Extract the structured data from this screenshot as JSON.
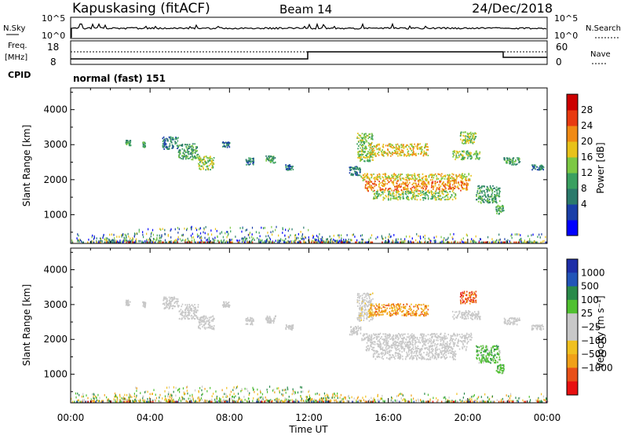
{
  "header": {
    "station": "Kapuskasing (fitACF)",
    "beam": "Beam 14",
    "date": "24/Dec/2018"
  },
  "strips": {
    "nsky_label": "N.Sky",
    "nsky_ticks": [
      "10^5",
      "10^0"
    ],
    "nsearch_label": "N.Search",
    "freq_label_1": "Freq.",
    "freq_label_2": "[MHz]",
    "freq_ticks": [
      "18",
      "8"
    ],
    "nave_label": "Nave",
    "nave_ticks": [
      "60",
      "0"
    ],
    "cpid_label": "CPID",
    "cpid_value": "normal (fast) 151"
  },
  "colors": {
    "power": [
      "#0000ff",
      "#1a3fa8",
      "#2b7a6b",
      "#3aa060",
      "#7cc843",
      "#e8c21a",
      "#f08a14",
      "#e83a10",
      "#cc0000"
    ],
    "velocity": [
      "#1e2fa8",
      "#2255b8",
      "#2a8a4a",
      "#50c030",
      "#c8c8c8",
      "#c8c8c8",
      "#f0c020",
      "#f0a018",
      "#e85018",
      "#e81010"
    ],
    "velocity_gray": "#c8c8c8"
  },
  "chart_data": [
    {
      "type": "heatmap",
      "panel": "power",
      "ylabel": "Slant Range [km]",
      "xlabel": "Time UT",
      "x_ticks": [
        "00:00",
        "04:00",
        "08:00",
        "12:00",
        "16:00",
        "20:00",
        "00:00"
      ],
      "y_ticks": [
        1000,
        2000,
        3000,
        4000
      ],
      "ylim": [
        180,
        4620
      ],
      "xlim_hours": [
        0,
        24
      ],
      "colorbar_label": "Power [dB]",
      "colorbar_ticks": [
        "28",
        "24",
        "20",
        "16",
        "12",
        "8",
        "4"
      ]
    },
    {
      "type": "heatmap",
      "panel": "velocity",
      "ylabel": "Slant Range [km]",
      "xlabel": "Time UT",
      "x_ticks": [
        "00:00",
        "04:00",
        "08:00",
        "12:00",
        "16:00",
        "20:00",
        "00:00"
      ],
      "y_ticks": [
        1000,
        2000,
        3000,
        4000
      ],
      "ylim": [
        180,
        4620
      ],
      "xlim_hours": [
        0,
        24
      ],
      "colorbar_label": "Velocity [m s⁻¹]",
      "colorbar_ticks": [
        "1000",
        "500",
        "100",
        "25",
        "−25",
        "−100",
        "−500",
        "−1000"
      ]
    }
  ],
  "echo_regions": [
    {
      "t0": 2.75,
      "t1": 3.0,
      "r0": 2950,
      "r1": 3100,
      "p": 3,
      "v": 4
    },
    {
      "t0": 3.6,
      "t1": 3.75,
      "r0": 2900,
      "r1": 3050,
      "p": 3,
      "v": 4
    },
    {
      "t0": 4.6,
      "t1": 5.4,
      "r0": 2850,
      "r1": 3200,
      "p": 2,
      "v": 4
    },
    {
      "t0": 5.4,
      "t1": 6.4,
      "r0": 2550,
      "r1": 3000,
      "p": 3,
      "v": 4
    },
    {
      "t0": 6.4,
      "t1": 7.2,
      "r0": 2250,
      "r1": 2650,
      "p": 4,
      "v": 4
    },
    {
      "t0": 7.6,
      "t1": 8.0,
      "r0": 2900,
      "r1": 3050,
      "p": 2,
      "v": 4
    },
    {
      "t0": 8.8,
      "t1": 9.2,
      "r0": 2400,
      "r1": 2600,
      "p": 2,
      "v": 4
    },
    {
      "t0": 9.8,
      "t1": 10.3,
      "r0": 2450,
      "r1": 2650,
      "p": 3,
      "v": 4
    },
    {
      "t0": 10.8,
      "t1": 11.2,
      "r0": 2250,
      "r1": 2400,
      "p": 2,
      "v": 4
    },
    {
      "t0": 14.0,
      "t1": 14.6,
      "r0": 2100,
      "r1": 2350,
      "p": 2,
      "v": 4
    },
    {
      "t0": 14.4,
      "t1": 15.2,
      "r0": 2500,
      "r1": 3300,
      "p": 4,
      "v": 5
    },
    {
      "t0": 15.0,
      "t1": 18.0,
      "r0": 2650,
      "r1": 3000,
      "p": 5,
      "v": 7
    },
    {
      "t0": 14.6,
      "t1": 20.2,
      "r0": 1950,
      "r1": 2150,
      "p": 5,
      "v": 4
    },
    {
      "t0": 14.8,
      "t1": 20.0,
      "r0": 1650,
      "r1": 1950,
      "p": 6,
      "v": 4
    },
    {
      "t0": 15.2,
      "t1": 19.4,
      "r0": 1400,
      "r1": 1650,
      "p": 4,
      "v": 4
    },
    {
      "t0": 19.2,
      "t1": 20.6,
      "r0": 2550,
      "r1": 2800,
      "p": 4,
      "v": 4
    },
    {
      "t0": 19.6,
      "t1": 20.4,
      "r0": 3000,
      "r1": 3350,
      "p": 4,
      "v": 8
    },
    {
      "t0": 20.4,
      "t1": 21.6,
      "r0": 1300,
      "r1": 1800,
      "p": 3,
      "v": 3
    },
    {
      "t0": 21.4,
      "t1": 21.8,
      "r0": 1000,
      "r1": 1250,
      "p": 3,
      "v": 3
    },
    {
      "t0": 21.8,
      "t1": 22.6,
      "r0": 2400,
      "r1": 2600,
      "p": 3,
      "v": 4
    },
    {
      "t0": 23.2,
      "t1": 23.8,
      "r0": 2250,
      "r1": 2400,
      "p": 2,
      "v": 4
    }
  ]
}
